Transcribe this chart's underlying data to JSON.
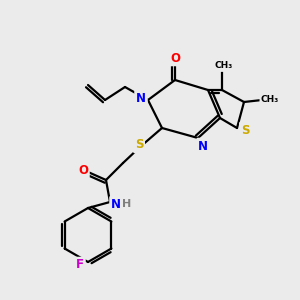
{
  "bg_color": "#ebebeb",
  "bond_color": "#000000",
  "atom_colors": {
    "N": "#0000ff",
    "O": "#ff0000",
    "S": "#ccaa00",
    "F": "#cc00cc",
    "H": "#7f7f7f",
    "C": "#000000"
  },
  "figsize": [
    3.0,
    3.0
  ],
  "dpi": 100
}
